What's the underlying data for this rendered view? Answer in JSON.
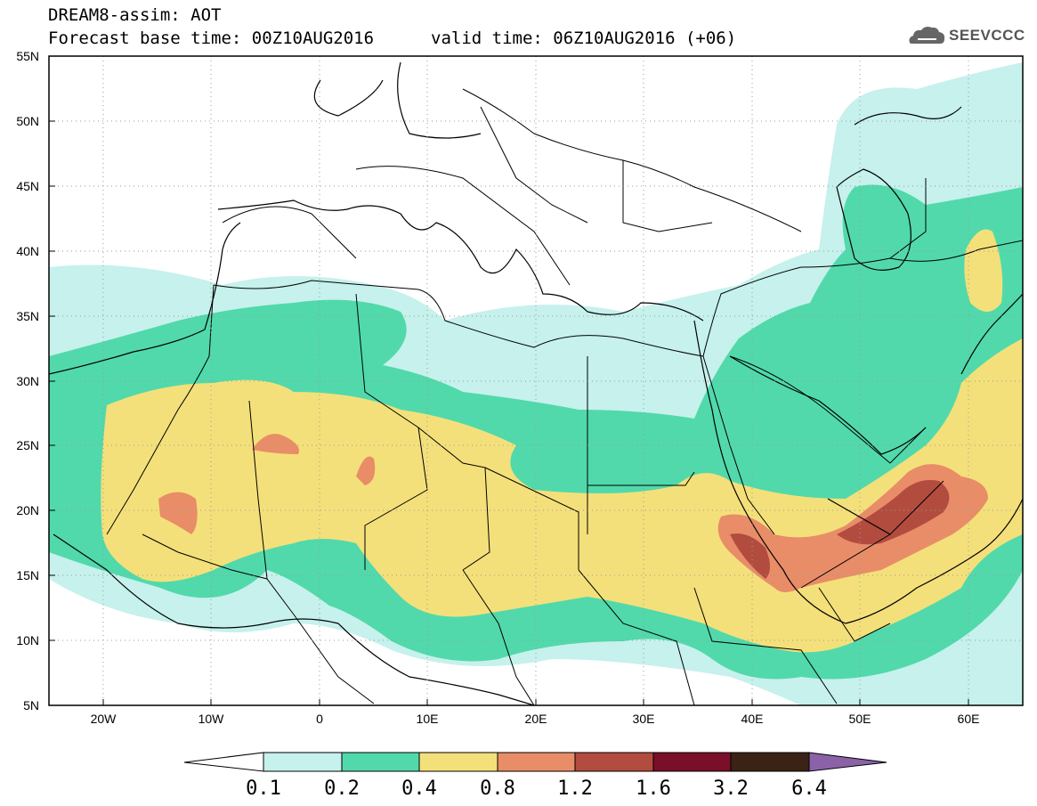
{
  "header": {
    "line1": "DREAM8-assim: AOT",
    "line2": "Forecast base time: 00Z10AUG2016",
    "line3": "valid time: 06Z10AUG2016 (+06)",
    "logo_text": "SEEVCCC",
    "logo_icon": "cloud-icon"
  },
  "map": {
    "lon_range": [
      -25,
      65
    ],
    "lat_range": [
      5,
      55
    ],
    "grid": true,
    "lat_labels": [
      "55N",
      "50N",
      "45N",
      "40N",
      "35N",
      "30N",
      "25N",
      "20N",
      "15N",
      "10N",
      "5N"
    ],
    "lon_labels": [
      "20W",
      "10W",
      "0",
      "10E",
      "20E",
      "30E",
      "40E",
      "50E",
      "60E"
    ]
  },
  "colorbar": {
    "labels": [
      "0.1",
      "0.2",
      "0.4",
      "0.8",
      "1.2",
      "1.6",
      "3.2",
      "6.4"
    ],
    "colors": [
      "#c6f1ec",
      "#51d9ab",
      "#f4e07a",
      "#e88d68",
      "#b24c3f",
      "#7a0f2a",
      "#3a2314",
      "#8b62a8"
    ],
    "low_end_color": "#ffffff"
  }
}
